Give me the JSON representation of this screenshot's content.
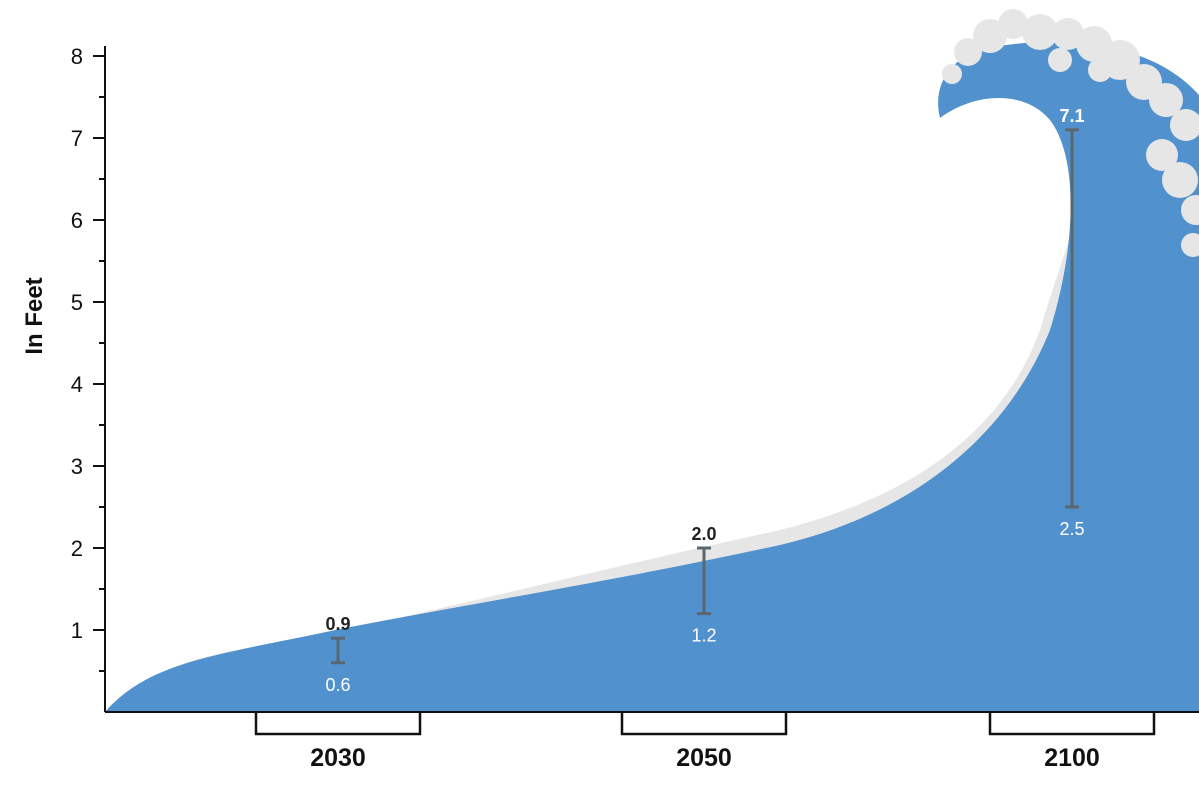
{
  "chart_data": {
    "type": "range",
    "ylabel": "In Feet",
    "ylim": [
      0,
      8
    ],
    "yticks": [
      1,
      2,
      3,
      4,
      5,
      6,
      7,
      8
    ],
    "categories": [
      "2030",
      "2050",
      "2100"
    ],
    "ranges": [
      {
        "category": "2030",
        "low": 0.6,
        "high": 0.9,
        "low_label": "0.6",
        "high_label": "0.9"
      },
      {
        "category": "2050",
        "low": 1.2,
        "high": 2.0,
        "low_label": "1.2",
        "high_label": "2.0"
      },
      {
        "category": "2100",
        "low": 2.5,
        "high": 7.1,
        "low_label": "2.5",
        "high_label": "7.1"
      }
    ],
    "colors": {
      "wave": "#5191cd",
      "foam": "#e6e6e6",
      "error_bar": "#5b6770",
      "label_on_white": "#222222",
      "label_on_wave": "#ffffff"
    }
  }
}
